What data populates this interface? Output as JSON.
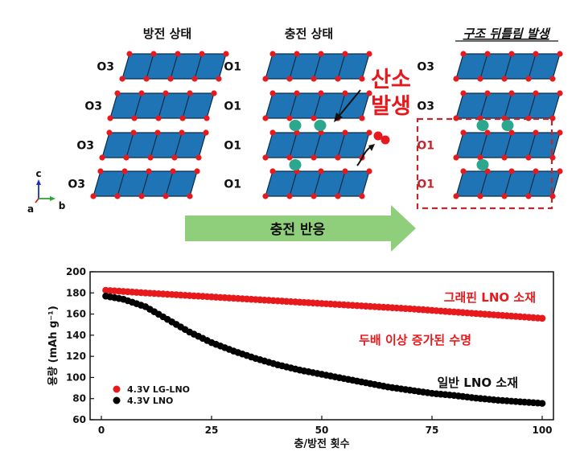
{
  "diagram": {
    "columns": {
      "discharged": "방전 상태",
      "charged": "충전 상태",
      "distorted": "구조 뒤틀림 발생"
    },
    "labels": {
      "discharged": [
        "O3",
        "O3",
        "O3",
        "O3"
      ],
      "charged": [
        "O1",
        "O1",
        "O1",
        "O1"
      ],
      "distorted": [
        "O3",
        "O3",
        "O1",
        "O1"
      ]
    },
    "oxygen_release": [
      "산소",
      "발생"
    ],
    "axes": {
      "c": "c",
      "a": "a",
      "b": "b"
    },
    "reaction_arrow": "충전 반응",
    "colors": {
      "slab": "#1f74b5",
      "oxygen": "#e8191c",
      "lithium": "#2aa78c",
      "arrow": "#8fcf7c",
      "highlight": "#c0282d"
    }
  },
  "chart_data": {
    "type": "scatter",
    "xlabel": "충/방전 횟수",
    "ylabel": "용량 (mAh g⁻¹)",
    "xlim": [
      0,
      100
    ],
    "ylim": [
      60,
      200
    ],
    "xticks": [
      0,
      25,
      50,
      75,
      100
    ],
    "yticks": [
      60,
      80,
      100,
      120,
      140,
      160,
      180,
      200
    ],
    "legend_position": "bottom-left",
    "series": [
      {
        "name": "4.3V LG-LNO",
        "color": "#e8191c",
        "x": [
          1,
          10,
          20,
          30,
          40,
          50,
          60,
          70,
          80,
          90,
          100
        ],
        "y": [
          182.5,
          180,
          177.5,
          175,
          172.5,
          170,
          167.5,
          165,
          162,
          159,
          156
        ]
      },
      {
        "name": "4.3V LNO",
        "color": "#000000",
        "x": [
          1,
          5,
          10,
          15,
          20,
          25,
          30,
          35,
          40,
          45,
          50,
          55,
          60,
          65,
          70,
          75,
          80,
          85,
          90,
          95,
          100
        ],
        "y": [
          177,
          174,
          167,
          155,
          143,
          133,
          125,
          118,
          112,
          107,
          103,
          99,
          95,
          91,
          88,
          85,
          83,
          80.5,
          78.5,
          77,
          75.5
        ]
      }
    ],
    "annotations": {
      "lg_label": "그래핀 LNO 소재",
      "note": "두배 이상 증가된 수명",
      "lno_label": "일반 LNO 소재"
    }
  }
}
